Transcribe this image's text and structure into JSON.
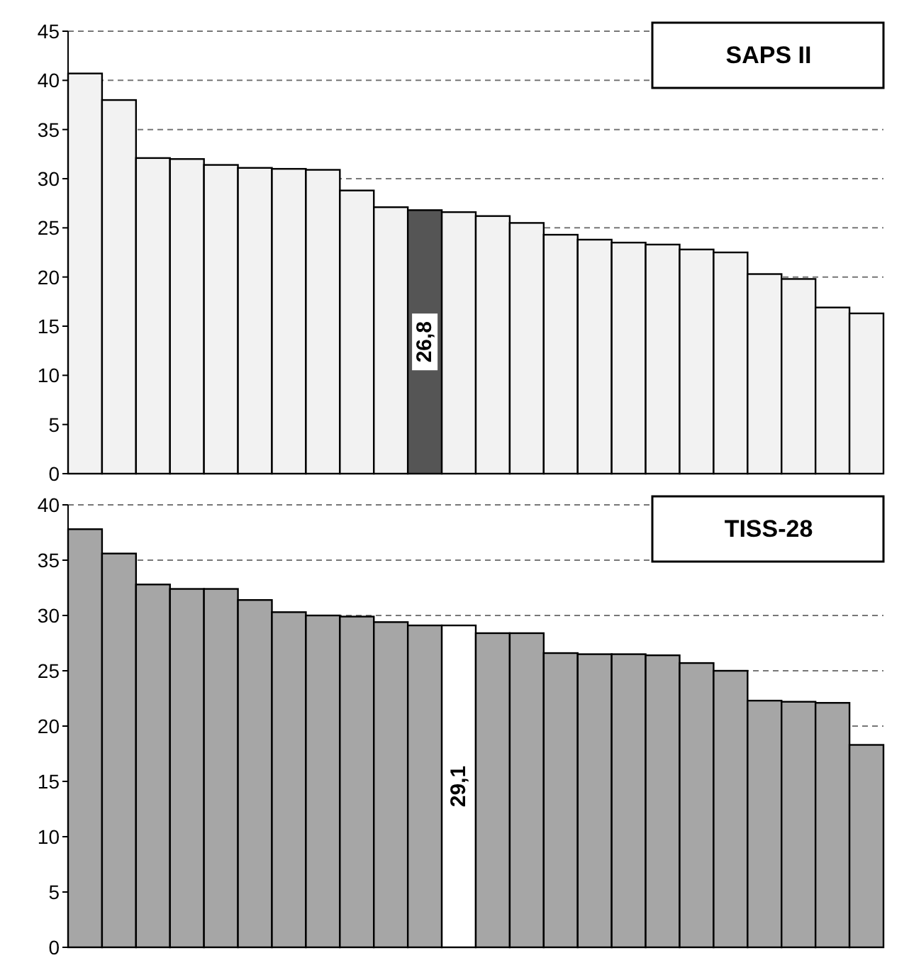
{
  "chart_data": [
    {
      "type": "bar",
      "title": "SAPS II",
      "categories": [
        null,
        null,
        null,
        null,
        null,
        null,
        null,
        null,
        null,
        null,
        null,
        null,
        null,
        null,
        null,
        null,
        null,
        null,
        null,
        null,
        null,
        null,
        null,
        null
      ],
      "values": [
        40.7,
        38.0,
        32.1,
        32.0,
        31.4,
        31.1,
        31.0,
        30.9,
        28.8,
        27.1,
        26.8,
        26.6,
        26.2,
        25.5,
        24.3,
        23.8,
        23.5,
        23.3,
        22.8,
        22.5,
        20.3,
        19.8,
        16.9,
        16.3
      ],
      "colors": [
        "#f2f2f2",
        "#f2f2f2",
        "#f2f2f2",
        "#f2f2f2",
        "#f2f2f2",
        "#f2f2f2",
        "#f2f2f2",
        "#f2f2f2",
        "#f2f2f2",
        "#f2f2f2",
        "#555555",
        "#f2f2f2",
        "#f2f2f2",
        "#f2f2f2",
        "#f2f2f2",
        "#f2f2f2",
        "#f2f2f2",
        "#f2f2f2",
        "#f2f2f2",
        "#f2f2f2",
        "#f2f2f2",
        "#f2f2f2",
        "#f2f2f2",
        "#f2f2f2"
      ],
      "value_labels": [
        null,
        null,
        null,
        null,
        null,
        null,
        null,
        null,
        null,
        null,
        "26,8",
        null,
        null,
        null,
        null,
        null,
        null,
        null,
        null,
        null,
        null,
        null,
        null,
        null
      ],
      "ylim": [
        0,
        45
      ],
      "yticks": [
        0,
        5,
        10,
        15,
        20,
        25,
        30,
        35,
        40,
        45
      ],
      "grid": "y"
    },
    {
      "type": "bar",
      "title": "TISS-28",
      "categories": [
        null,
        null,
        null,
        null,
        null,
        null,
        null,
        null,
        null,
        null,
        null,
        null,
        null,
        null,
        null,
        null,
        null,
        null,
        null,
        null,
        null,
        null,
        null,
        null
      ],
      "values": [
        37.8,
        35.6,
        32.8,
        32.4,
        32.4,
        31.4,
        30.3,
        30.0,
        29.9,
        29.4,
        29.1,
        29.1,
        28.4,
        28.4,
        26.6,
        26.5,
        26.5,
        26.4,
        25.7,
        25.0,
        22.3,
        22.2,
        22.1,
        18.3
      ],
      "colors": [
        "#a6a6a6",
        "#a6a6a6",
        "#a6a6a6",
        "#a6a6a6",
        "#a6a6a6",
        "#a6a6a6",
        "#a6a6a6",
        "#a6a6a6",
        "#a6a6a6",
        "#a6a6a6",
        "#a6a6a6",
        "#ffffff",
        "#a6a6a6",
        "#a6a6a6",
        "#a6a6a6",
        "#a6a6a6",
        "#a6a6a6",
        "#a6a6a6",
        "#a6a6a6",
        "#a6a6a6",
        "#a6a6a6",
        "#a6a6a6",
        "#a6a6a6",
        "#a6a6a6"
      ],
      "value_labels": [
        null,
        null,
        null,
        null,
        null,
        null,
        null,
        null,
        null,
        null,
        null,
        "29,1",
        null,
        null,
        null,
        null,
        null,
        null,
        null,
        null,
        null,
        null,
        null,
        null
      ],
      "ylim": [
        0,
        40
      ],
      "yticks": [
        0,
        5,
        10,
        15,
        20,
        25,
        30,
        35,
        40
      ],
      "grid": "y"
    }
  ]
}
